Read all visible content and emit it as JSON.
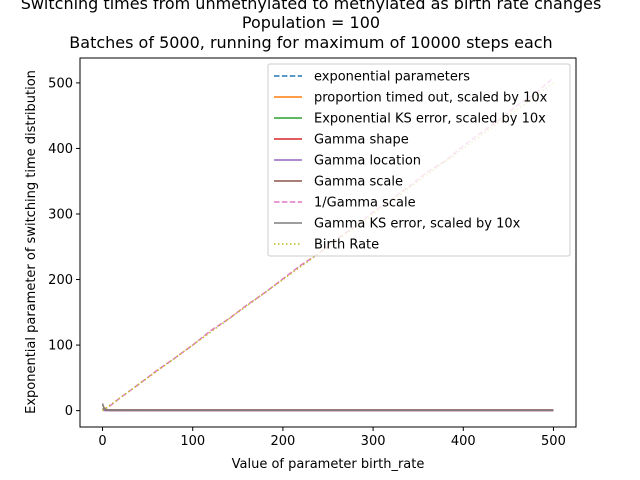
{
  "chart_data": {
    "type": "line",
    "title_lines": [
      "Switching times from unmethylated to methylated as birth rate changes",
      "Population = 100",
      "Batches of 5000, running for maximum of 10000 steps each"
    ],
    "xlabel": "Value of parameter birth_rate",
    "ylabel": "Exponential parameter of switching time distribution",
    "xlim": [
      -25,
      525
    ],
    "ylim": [
      -25,
      538
    ],
    "x_ticks": [
      0,
      100,
      200,
      300,
      400,
      500
    ],
    "y_ticks": [
      0,
      100,
      200,
      300,
      400,
      500
    ],
    "legend_position": "top-right",
    "series": [
      {
        "name": "exponential parameters",
        "color": "#1f77b4",
        "style": "dashed",
        "x": [
          0,
          2,
          5,
          10,
          50,
          100,
          200,
          300,
          400,
          500
        ],
        "y": [
          1.2,
          0.8,
          0.6,
          0.5,
          0.5,
          0.5,
          0.5,
          0.5,
          0.5,
          0.5
        ]
      },
      {
        "name": "proportion timed out, scaled by 10x",
        "color": "#ff7f0e",
        "style": "solid",
        "x": [
          0,
          2,
          5,
          10,
          50,
          100,
          200,
          300,
          400,
          500
        ],
        "y": [
          9,
          4,
          1,
          0.2,
          0,
          0,
          0,
          0,
          0,
          0
        ]
      },
      {
        "name": "Exponential KS error, scaled by 10x",
        "color": "#2ca02c",
        "style": "solid",
        "x": [
          0,
          2,
          5,
          10,
          50,
          100,
          200,
          300,
          400,
          500
        ],
        "y": [
          3,
          1.5,
          0.8,
          0.6,
          0.5,
          0.5,
          0.5,
          0.5,
          0.5,
          0.5
        ]
      },
      {
        "name": "Gamma shape",
        "color": "#d62728",
        "style": "solid",
        "x": [
          0,
          2,
          5,
          10,
          50,
          100,
          200,
          300,
          400,
          500
        ],
        "y": [
          1.5,
          1.2,
          1,
          1,
          1,
          1,
          1,
          1,
          1,
          1
        ]
      },
      {
        "name": "Gamma location",
        "color": "#9467bd",
        "style": "solid",
        "x": [
          0,
          2,
          5,
          10,
          50,
          100,
          200,
          300,
          400,
          500
        ],
        "y": [
          0.5,
          0.2,
          0,
          0,
          0,
          0,
          0,
          0,
          0,
          0
        ]
      },
      {
        "name": "Gamma scale",
        "color": "#8c564b",
        "style": "solid",
        "x": [
          0,
          2,
          5,
          10,
          50,
          100,
          200,
          300,
          400,
          500
        ],
        "y": [
          2,
          1.5,
          1.2,
          1,
          1,
          1,
          1,
          1,
          1,
          1
        ]
      },
      {
        "name": "1/Gamma scale",
        "color": "#e377c2",
        "style": "dashed",
        "x": [
          0,
          10,
          20,
          40,
          60,
          80,
          100,
          120,
          140,
          160,
          180,
          200,
          220,
          240,
          260,
          280,
          300,
          320,
          340,
          360,
          380,
          400,
          420,
          440,
          460,
          480,
          500
        ],
        "y": [
          0,
          9,
          20,
          40,
          61,
          80,
          100,
          122,
          140,
          161,
          180,
          201,
          222,
          240,
          262,
          281,
          303,
          322,
          342,
          364,
          381,
          404,
          424,
          444,
          466,
          484,
          508
        ]
      },
      {
        "name": "Gamma KS error, scaled by 10x",
        "color": "#7f7f7f",
        "style": "solid",
        "x": [
          0,
          1,
          2,
          5,
          10,
          50,
          100,
          200,
          300,
          400,
          500
        ],
        "y": [
          11,
          6,
          3,
          1,
          0.8,
          0.5,
          0.5,
          0.5,
          0.5,
          0.5,
          0.5
        ]
      },
      {
        "name": "Birth Rate",
        "color": "#bcbd22",
        "style": "dotted",
        "x": [
          0,
          500
        ],
        "y": [
          0,
          500
        ]
      }
    ]
  }
}
